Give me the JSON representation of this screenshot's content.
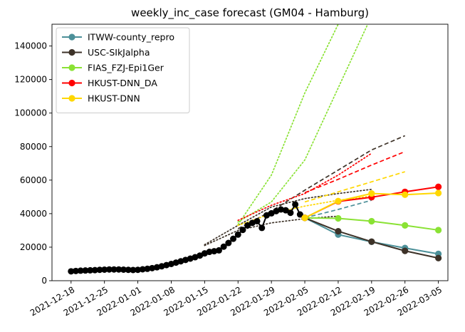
{
  "chart_data": {
    "type": "line",
    "title": "weekly_inc_case forecast (GM04 - Hamburg)",
    "xlabel": "",
    "ylabel": "",
    "x_axis": {
      "type": "date",
      "range": [
        "2021-12-14",
        "2022-03-07"
      ],
      "ticks": [
        "2021-12-18",
        "2021-12-25",
        "2022-01-01",
        "2022-01-08",
        "2022-01-15",
        "2022-01-22",
        "2022-01-29",
        "2022-02-05",
        "2022-02-12",
        "2022-02-19",
        "2022-02-26",
        "2022-03-05"
      ]
    },
    "y_axis": {
      "range": [
        0,
        153000
      ],
      "ticks": [
        0,
        20000,
        40000,
        60000,
        80000,
        100000,
        120000,
        140000
      ]
    },
    "grid": false,
    "legend_position": "top-left",
    "observed": {
      "color": "#000000",
      "points": [
        [
          "2021-12-18",
          5600
        ],
        [
          "2021-12-19",
          5800
        ],
        [
          "2021-12-20",
          6000
        ],
        [
          "2021-12-21",
          6100
        ],
        [
          "2021-12-22",
          6200
        ],
        [
          "2021-12-23",
          6300
        ],
        [
          "2021-12-24",
          6500
        ],
        [
          "2021-12-25",
          6600
        ],
        [
          "2021-12-26",
          6700
        ],
        [
          "2021-12-27",
          6700
        ],
        [
          "2021-12-28",
          6700
        ],
        [
          "2021-12-29",
          6600
        ],
        [
          "2021-12-30",
          6500
        ],
        [
          "2021-12-31",
          6400
        ],
        [
          "2022-01-01",
          6500
        ],
        [
          "2022-01-02",
          6800
        ],
        [
          "2022-01-03",
          7100
        ],
        [
          "2022-01-04",
          7500
        ],
        [
          "2022-01-05",
          8000
        ],
        [
          "2022-01-06",
          8600
        ],
        [
          "2022-01-07",
          9300
        ],
        [
          "2022-01-08",
          10000
        ],
        [
          "2022-01-09",
          10800
        ],
        [
          "2022-01-10",
          11600
        ],
        [
          "2022-01-11",
          12400
        ],
        [
          "2022-01-12",
          13200
        ],
        [
          "2022-01-13",
          14000
        ],
        [
          "2022-01-14",
          15000
        ],
        [
          "2022-01-15",
          16300
        ],
        [
          "2022-01-16",
          17200
        ],
        [
          "2022-01-17",
          17600
        ],
        [
          "2022-01-18",
          18100
        ],
        [
          "2022-01-19",
          20300
        ],
        [
          "2022-01-20",
          22500
        ],
        [
          "2022-01-21",
          25000
        ],
        [
          "2022-01-22",
          27500
        ],
        [
          "2022-01-23",
          30300
        ],
        [
          "2022-01-24",
          33000
        ],
        [
          "2022-01-25",
          34500
        ],
        [
          "2022-01-26",
          35500
        ],
        [
          "2022-01-27",
          31500
        ],
        [
          "2022-01-28",
          39000
        ],
        [
          "2022-01-29",
          40200
        ],
        [
          "2022-01-30",
          41500
        ],
        [
          "2022-01-31",
          42500
        ],
        [
          "2022-02-01",
          42000
        ],
        [
          "2022-02-02",
          40500
        ],
        [
          "2022-02-03",
          45500
        ],
        [
          "2022-02-04",
          39500
        ],
        [
          "2022-02-05",
          37500
        ]
      ]
    },
    "series": [
      {
        "name": "ITWW-county_repro",
        "color": "#4c9099",
        "forecast": [
          [
            "2022-02-05",
            37500
          ],
          [
            "2022-02-12",
            27500
          ],
          [
            "2022-02-19",
            23200
          ],
          [
            "2022-02-26",
            19500
          ],
          [
            "2022-03-05",
            16000
          ]
        ],
        "history": [
          {
            "style": "dashed",
            "points": [
              [
                "2022-02-05",
                37500
              ],
              [
                "2022-02-12",
                42500
              ],
              [
                "2022-02-19",
                48000
              ]
            ]
          }
        ]
      },
      {
        "name": "USC-SIkJalpha",
        "color": "#3d3228",
        "forecast": [
          [
            "2022-02-05",
            37500
          ],
          [
            "2022-02-12",
            29500
          ],
          [
            "2022-02-19",
            23300
          ],
          [
            "2022-02-26",
            17800
          ],
          [
            "2022-03-05",
            13500
          ]
        ],
        "history": [
          {
            "style": "dashed",
            "points": [
              [
                "2022-01-22",
                31000
              ],
              [
                "2022-01-29",
                41500
              ],
              [
                "2022-02-05",
                54000
              ],
              [
                "2022-02-12",
                66000
              ],
              [
                "2022-02-19",
                78000
              ],
              [
                "2022-02-26",
                86500
              ]
            ]
          },
          {
            "style": "dotted",
            "points": [
              [
                "2022-01-15",
                21500
              ],
              [
                "2022-01-22",
                33000
              ],
              [
                "2022-01-29",
                44000
              ],
              [
                "2022-02-05",
                49000
              ],
              [
                "2022-02-12",
                52000
              ],
              [
                "2022-02-19",
                54500
              ]
            ]
          },
          {
            "style": "dotted",
            "points": [
              [
                "2022-01-15",
                21000
              ],
              [
                "2022-01-22",
                30000
              ],
              [
                "2022-01-29",
                34500
              ],
              [
                "2022-02-05",
                37000
              ],
              [
                "2022-02-12",
                38500
              ]
            ]
          }
        ]
      },
      {
        "name": "FIAS_FZJ-Epi1Ger",
        "color": "#8ae234",
        "forecast": [
          [
            "2022-02-05",
            37500
          ],
          [
            "2022-02-12",
            37200
          ],
          [
            "2022-02-19",
            35500
          ],
          [
            "2022-02-26",
            33000
          ],
          [
            "2022-03-05",
            30200
          ]
        ],
        "history": [
          {
            "style": "dotted",
            "points": [
              [
                "2022-01-22",
                33500
              ],
              [
                "2022-01-29",
                63000
              ],
              [
                "2022-02-05",
                112000
              ],
              [
                "2022-02-12",
                153000
              ]
            ]
          },
          {
            "style": "dotted",
            "points": [
              [
                "2022-01-22",
                35000
              ],
              [
                "2022-01-29",
                47000
              ],
              [
                "2022-02-05",
                72000
              ],
              [
                "2022-02-12",
                115000
              ],
              [
                "2022-02-19",
                158000
              ]
            ]
          }
        ]
      },
      {
        "name": "HKUST-DNN_DA",
        "color": "#ff0000",
        "forecast": [
          [
            "2022-02-05",
            37500
          ],
          [
            "2022-02-12",
            47300
          ],
          [
            "2022-02-19",
            49800
          ],
          [
            "2022-02-26",
            53000
          ],
          [
            "2022-03-05",
            56000
          ]
        ],
        "history": [
          {
            "style": "dashed",
            "points": [
              [
                "2022-02-05",
                52500
              ],
              [
                "2022-02-12",
                60500
              ],
              [
                "2022-02-19",
                69000
              ],
              [
                "2022-02-26",
                77000
              ]
            ]
          },
          {
            "style": "dotted",
            "points": [
              [
                "2022-01-22",
                36000
              ],
              [
                "2022-01-29",
                45000
              ],
              [
                "2022-02-05",
                52000
              ],
              [
                "2022-02-12",
                63000
              ],
              [
                "2022-02-19",
                76000
              ]
            ]
          }
        ]
      },
      {
        "name": "HKUST-DNN",
        "color": "#ffd700",
        "forecast": [
          [
            "2022-02-05",
            37500
          ],
          [
            "2022-02-12",
            47500
          ],
          [
            "2022-02-19",
            52000
          ],
          [
            "2022-02-26",
            51300
          ],
          [
            "2022-03-05",
            52300
          ]
        ],
        "history": [
          {
            "style": "dashed",
            "points": [
              [
                "2022-02-05",
                47000
              ],
              [
                "2022-02-12",
                53000
              ],
              [
                "2022-02-19",
                59000
              ],
              [
                "2022-02-26",
                65000
              ]
            ]
          },
          {
            "style": "dotted",
            "points": [
              [
                "2022-01-22",
                33000
              ],
              [
                "2022-01-29",
                40000
              ],
              [
                "2022-02-05",
                44500
              ],
              [
                "2022-02-12",
                48000
              ],
              [
                "2022-02-19",
                50500
              ]
            ]
          }
        ]
      }
    ]
  }
}
